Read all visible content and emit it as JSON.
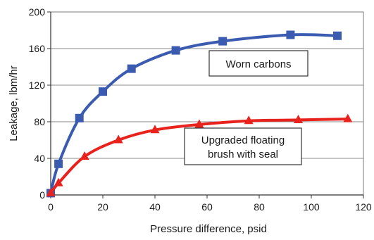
{
  "chart_data": {
    "type": "line",
    "xlabel": "Pressure difference, psid",
    "ylabel": "Leakage, lbm/hr",
    "xlim": [
      0,
      120
    ],
    "ylim": [
      0,
      200
    ],
    "xticks": [
      0,
      20,
      40,
      60,
      80,
      100,
      120
    ],
    "yticks": [
      0,
      40,
      80,
      120,
      160,
      200
    ],
    "grid": "horizontal",
    "series": [
      {
        "name": "Worn carbons",
        "color": "#3a5bb0",
        "marker": "square",
        "x": [
          0,
          3,
          11,
          20,
          31,
          48,
          66,
          92,
          110
        ],
        "y": [
          2,
          34,
          84,
          113,
          138,
          158,
          168,
          175,
          174
        ]
      },
      {
        "name": "Upgraded floating brush with seal",
        "label_lines": [
          "Upgraded floating",
          "brush with seal"
        ],
        "color": "#e8231e",
        "marker": "triangle",
        "x": [
          0,
          3,
          13,
          26,
          40,
          57,
          76,
          95,
          114
        ],
        "y": [
          2,
          13,
          42,
          60,
          71,
          77,
          81,
          82,
          83
        ]
      }
    ]
  }
}
